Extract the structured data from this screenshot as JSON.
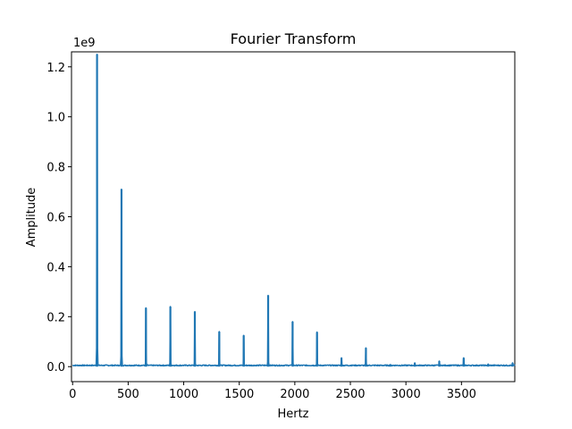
{
  "chart_data": {
    "type": "line",
    "title": "Fourier Transform",
    "xlabel": "Hertz",
    "ylabel": "Amplitude",
    "y_multiplier_label": "1e9",
    "xlim": [
      -10,
      3980
    ],
    "ylim": [
      -0.06,
      1.26
    ],
    "x_ticks": [
      0,
      500,
      1000,
      1500,
      2000,
      2500,
      3000,
      3500
    ],
    "x_tick_labels": [
      "0",
      "500",
      "1000",
      "1500",
      "2000",
      "2500",
      "3000",
      "3500"
    ],
    "y_ticks": [
      0.0,
      0.2,
      0.4,
      0.6,
      0.8,
      1.0,
      1.2
    ],
    "y_tick_labels": [
      "0.0",
      "0.2",
      "0.4",
      "0.6",
      "0.8",
      "1.0",
      "1.2"
    ],
    "grid": false,
    "series": [
      {
        "color": "#1f77b4",
        "peaks": [
          {
            "x": 220,
            "y": 1.25
          },
          {
            "x": 440,
            "y": 0.71
          },
          {
            "x": 660,
            "y": 0.235
          },
          {
            "x": 880,
            "y": 0.24
          },
          {
            "x": 1100,
            "y": 0.22
          },
          {
            "x": 1320,
            "y": 0.14
          },
          {
            "x": 1540,
            "y": 0.125
          },
          {
            "x": 1760,
            "y": 0.285
          },
          {
            "x": 1980,
            "y": 0.18
          },
          {
            "x": 2200,
            "y": 0.138
          },
          {
            "x": 2420,
            "y": 0.035
          },
          {
            "x": 2640,
            "y": 0.075
          },
          {
            "x": 2860,
            "y": 0.008
          },
          {
            "x": 3080,
            "y": 0.015
          },
          {
            "x": 3300,
            "y": 0.022
          },
          {
            "x": 3520,
            "y": 0.035
          },
          {
            "x": 3740,
            "y": 0.01
          },
          {
            "x": 3960,
            "y": 0.015
          }
        ]
      }
    ]
  }
}
